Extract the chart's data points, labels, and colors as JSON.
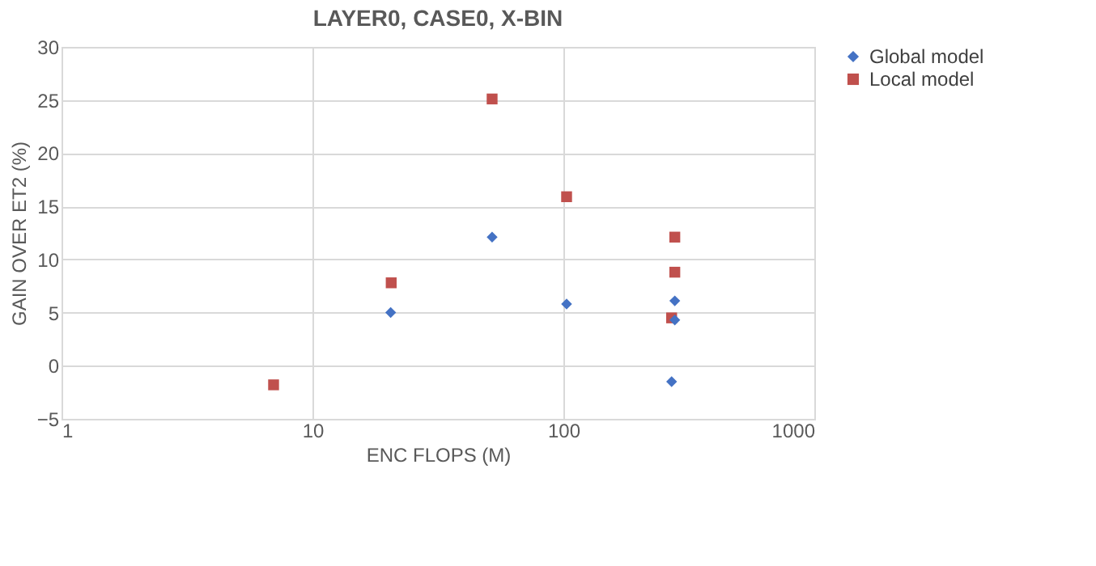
{
  "chart_data": {
    "type": "scatter",
    "title": "LAYER0, CASE0, X-BIN",
    "xlabel": "ENC FLOPS (M)",
    "ylabel": "GAIN OVER ET2  (%)",
    "series": [
      {
        "name": "Global model",
        "color": "#4472c4",
        "marker": "diamond",
        "x": [
          20.5,
          52,
          103,
          278,
          278,
          270
        ],
        "values": [
          5.0,
          12.1,
          5.8,
          6.1,
          4.3,
          -1.5
        ]
      },
      {
        "name": "Local model",
        "color": "#c0504d",
        "marker": "square",
        "x": [
          7.0,
          20.6,
          52,
          103,
          278,
          278,
          270
        ],
        "values": [
          -1.8,
          7.8,
          25.1,
          15.9,
          12.1,
          8.8,
          4.5
        ]
      }
    ],
    "log": "x",
    "xlim": [
      1,
      1000
    ],
    "xticks": [
      1,
      10,
      100,
      1000
    ],
    "ylim": [
      -5,
      30
    ],
    "yticks": [
      -5,
      0,
      5,
      10,
      15,
      20,
      25,
      30
    ],
    "grid": true,
    "legend": "right"
  }
}
